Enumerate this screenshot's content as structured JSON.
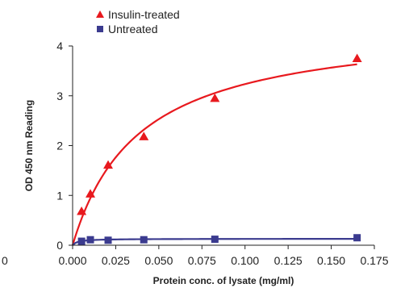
{
  "chart_data": {
    "type": "scatter",
    "xlabel": "Protein conc. of lysate (mg/ml)",
    "ylabel": "OD 450 nm Reading",
    "xlim": [
      0,
      0.175
    ],
    "ylim": [
      0,
      4
    ],
    "x_ticks": [
      "0.000",
      "0.025",
      "0.050",
      "0.075",
      "0.100",
      "0.125",
      "0.150",
      "0.175"
    ],
    "y_ticks": [
      "0",
      "1",
      "2",
      "3",
      "4"
    ],
    "grid": false,
    "legend_position": "top-left",
    "series": [
      {
        "name": "Insulin-treated",
        "marker": "triangle",
        "color": "#e8191e",
        "x": [
          0.0,
          0.0052,
          0.0103,
          0.0206,
          0.0413,
          0.0825,
          0.165
        ],
        "y": [
          0.0,
          0.68,
          1.03,
          1.61,
          2.18,
          2.95,
          3.75
        ],
        "fit": "curve"
      },
      {
        "name": "Untreated",
        "marker": "square",
        "color": "#3b3b8f",
        "x": [
          0.0,
          0.0052,
          0.0103,
          0.0206,
          0.0413,
          0.0825,
          0.165
        ],
        "y": [
          0.0,
          0.08,
          0.11,
          0.1,
          0.11,
          0.12,
          0.15
        ],
        "fit": "curve"
      }
    ],
    "stray_label": "0"
  }
}
